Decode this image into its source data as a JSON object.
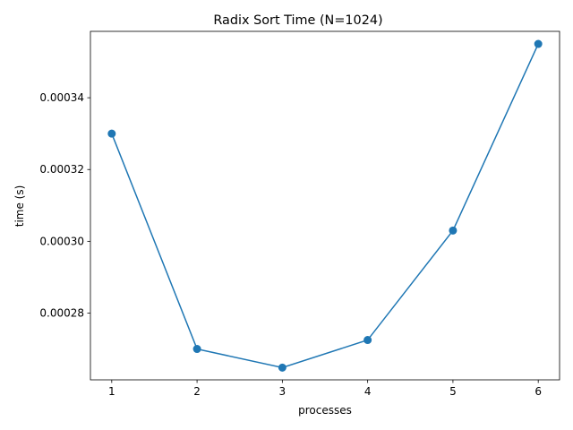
{
  "chart_data": {
    "type": "line",
    "title": "Radix Sort Time (N=1024)",
    "xlabel": "processes",
    "ylabel": "time (s)",
    "x": [
      1,
      2,
      3,
      4,
      5,
      6
    ],
    "x_ticks": [
      "1",
      "2",
      "3",
      "4",
      "5",
      "6"
    ],
    "series": [
      {
        "values": [
          0.00033,
          0.00027,
          0.0002648,
          0.0002725,
          0.000303,
          0.000355
        ],
        "color": "#1f77b4",
        "marker": "circle"
      }
    ],
    "y_ticks": [
      0.00028,
      0.0003,
      0.00032,
      0.00034
    ],
    "y_tick_labels": [
      "0.00028",
      "0.00030",
      "0.00032",
      "0.00034"
    ],
    "xlim": [
      0.75,
      6.25
    ],
    "ylim": [
      0.0002614,
      0.0003585
    ],
    "grid": false
  }
}
